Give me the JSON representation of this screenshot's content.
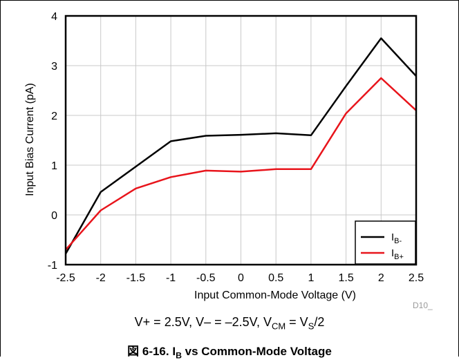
{
  "chart_data": {
    "type": "line",
    "xlabel": "Input Common-Mode Voltage (V)",
    "ylabel": "Input Bias Current (pA)",
    "xlim": [
      -2.5,
      2.5
    ],
    "ylim": [
      -1,
      4
    ],
    "x_ticks": [
      "-2.5",
      "-2",
      "-1.5",
      "-1",
      "-0.5",
      "0",
      "0.5",
      "1",
      "1.5",
      "2",
      "2.5"
    ],
    "y_ticks": [
      "-1",
      "0",
      "1",
      "2",
      "3",
      "4"
    ],
    "grid": true,
    "legend_position": "bottom-right",
    "series": [
      {
        "name": "IB-",
        "legend_main": "I",
        "legend_sub": "B-",
        "color": "#000000",
        "x": [
          -2.5,
          -2,
          -1,
          -0.5,
          0,
          0.5,
          1,
          1.5,
          2,
          2.5
        ],
        "y": [
          -0.78,
          0.46,
          1.48,
          1.59,
          1.61,
          1.64,
          1.6,
          2.59,
          3.55,
          2.79
        ]
      },
      {
        "name": "IB+",
        "legend_main": "I",
        "legend_sub": "B+",
        "color": "#e8141b",
        "x": [
          -2.5,
          -2,
          -1.5,
          -1,
          -0.5,
          0,
          0.5,
          1,
          1.5,
          2,
          2.5
        ],
        "y": [
          -0.7,
          0.09,
          0.53,
          0.76,
          0.89,
          0.87,
          0.92,
          0.92,
          2.04,
          2.75,
          2.1
        ]
      }
    ],
    "annotation": "D10_"
  },
  "conditions": {
    "part1": "V+ = 2.5V, V– = –2.5V, V",
    "sub1": "CM",
    "part2": " = V",
    "sub2": "S",
    "part3": "/2"
  },
  "caption": {
    "prefix": "図 6-16. I",
    "sub": "B",
    "suffix": " vs Common-Mode Voltage"
  }
}
